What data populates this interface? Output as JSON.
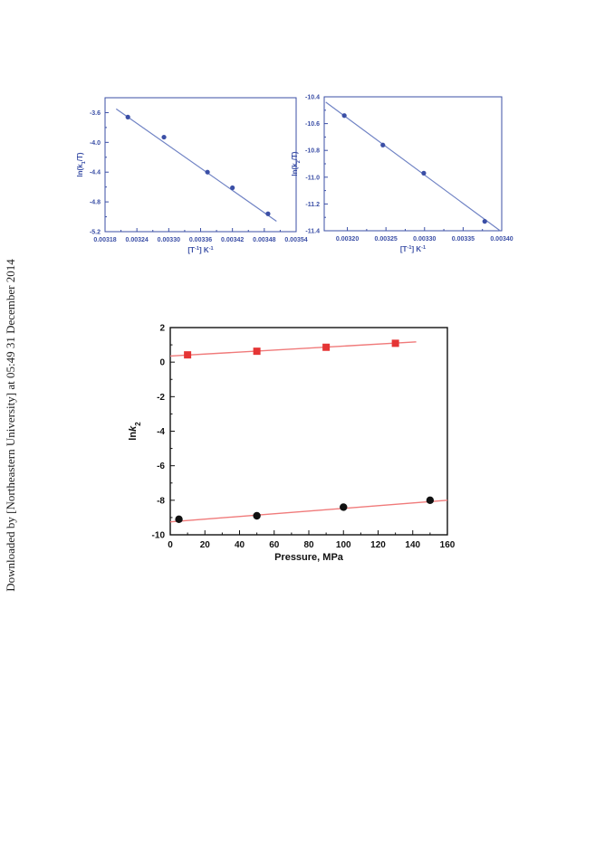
{
  "sidebar_note": "Downloaded by [Northeastern University] at 05:49 31 December 2014",
  "colors": {
    "blue_axis": "#3b4fa6",
    "blue_line": "#6f82c4",
    "red": "#e53535",
    "red_line": "#f07a7a",
    "black": "#111111"
  },
  "chart_data": [
    {
      "type": "scatter",
      "title": "",
      "xlabel_parts": [
        "[T",
        "-1",
        "] K",
        "-1"
      ],
      "ylabel_parts": [
        "ln(k",
        "1",
        "/T)"
      ],
      "xlim": [
        0.00318,
        0.00354
      ],
      "ylim": [
        -5.2,
        -3.4
      ],
      "xticks": [
        "0.00318",
        "0.00324",
        "0.00330",
        "0.00336",
        "0.00342",
        "0.00348",
        "0.00354"
      ],
      "xtick_values": [
        0.00318,
        0.00324,
        0.0033,
        0.00336,
        0.00342,
        0.00348,
        0.00354
      ],
      "yticks": [
        "-3.6",
        "-4.0",
        "-4.4",
        "-4.8",
        "-5.2"
      ],
      "ytick_values": [
        -3.6,
        -4.0,
        -4.4,
        -4.8,
        -5.2
      ],
      "points": [
        [
          0.003223,
          -3.66
        ],
        [
          0.003291,
          -3.93
        ],
        [
          0.003373,
          -4.4
        ],
        [
          0.00342,
          -4.61
        ],
        [
          0.003487,
          -4.96
        ]
      ],
      "fit_line": [
        [
          0.003201,
          -3.55
        ],
        [
          0.003503,
          -5.06
        ]
      ]
    },
    {
      "type": "scatter",
      "title": "",
      "xlabel_parts": [
        "[T",
        "-1",
        "] K",
        "-1"
      ],
      "ylabel_parts": [
        "ln(k",
        "2",
        "/T)"
      ],
      "xlim": [
        0.00317,
        0.0034
      ],
      "ylim": [
        -11.4,
        -10.4
      ],
      "xticks": [
        "0.00320",
        "0.00325",
        "0.00330",
        "0.00335",
        "0.00340"
      ],
      "xtick_values": [
        0.0032,
        0.00325,
        0.0033,
        0.00335,
        0.0034
      ],
      "yticks": [
        "-10.4",
        "-10.6",
        "-10.8",
        "-11.0",
        "-11.2",
        "-11.4"
      ],
      "ytick_values": [
        -10.4,
        -10.6,
        -10.8,
        -11.0,
        -11.2,
        -11.4
      ],
      "points": [
        [
          0.003196,
          -10.54
        ],
        [
          0.003246,
          -10.76
        ],
        [
          0.003299,
          -10.97
        ],
        [
          0.003378,
          -11.33
        ]
      ],
      "fit_line": [
        [
          0.003172,
          -10.44
        ],
        [
          0.003398,
          -11.4
        ]
      ]
    },
    {
      "type": "scatter",
      "title": "",
      "xlabel": "Pressure, MPa",
      "ylabel_parts": [
        "ln",
        "k",
        "2"
      ],
      "xlim": [
        0,
        160
      ],
      "ylim": [
        -10,
        2
      ],
      "xticks": [
        "0",
        "20",
        "40",
        "60",
        "80",
        "100",
        "120",
        "140",
        "160"
      ],
      "xtick_values": [
        0,
        20,
        40,
        60,
        80,
        100,
        120,
        140,
        160
      ],
      "yticks": [
        "2",
        "0",
        "-2",
        "-4",
        "-6",
        "-8",
        "-10"
      ],
      "ytick_values": [
        2,
        0,
        -2,
        -4,
        -6,
        -8,
        -10
      ],
      "series": [
        {
          "marker": "square",
          "color": "#e53535",
          "points": [
            [
              10,
              0.42
            ],
            [
              50,
              0.63
            ],
            [
              90,
              0.86
            ],
            [
              130,
              1.09
            ]
          ],
          "fit_line": [
            [
              0,
              0.35
            ],
            [
              142,
              1.17
            ]
          ]
        },
        {
          "marker": "circle",
          "color": "#111111",
          "points": [
            [
              5,
              -9.1
            ],
            [
              50,
              -8.9
            ],
            [
              100,
              -8.4
            ],
            [
              150,
              -8.0
            ]
          ],
          "fit_line": [
            [
              0,
              -9.25
            ],
            [
              160,
              -8.0
            ]
          ]
        }
      ]
    }
  ]
}
